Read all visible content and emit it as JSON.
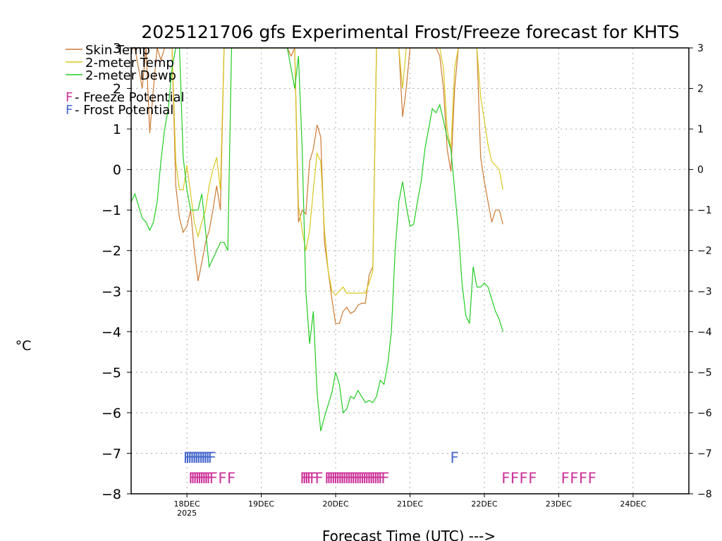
{
  "chart_data": {
    "type": "line",
    "title": "2025121706 gfs Experimental Frost/Freeze forecast for KHTS",
    "ylabel": "°C",
    "xlabel": "Forecast Time (UTC) --->",
    "ylim": [
      -8,
      3
    ],
    "xlim": [
      17.25,
      24.75
    ],
    "yticks": [
      -8,
      -7,
      -6,
      -5,
      -4,
      -3,
      -2,
      -1,
      0,
      1,
      2,
      3
    ],
    "xticks": [
      {
        "v": 18,
        "label": "18DEC",
        "sub": "2025"
      },
      {
        "v": 19,
        "label": "19DEC",
        "sub": ""
      },
      {
        "v": 20,
        "label": "20DEC",
        "sub": ""
      },
      {
        "v": 21,
        "label": "21DEC",
        "sub": ""
      },
      {
        "v": 22,
        "label": "22DEC",
        "sub": ""
      },
      {
        "v": 23,
        "label": "23DEC",
        "sub": ""
      },
      {
        "v": 24,
        "label": "24DEC",
        "sub": ""
      }
    ],
    "grid": true,
    "legend": {
      "placement": "top-left",
      "lines": [
        {
          "label": "Skin Temp",
          "color": "#cc7a33"
        },
        {
          "label": "2-meter Temp",
          "color": "#d8c81e"
        },
        {
          "label": "2-meter Dewp",
          "color": "#22cc22"
        }
      ],
      "markers": [
        {
          "glyph": "F",
          "label": " - Freeze Potential",
          "color": "#cc3399"
        },
        {
          "glyph": "F",
          "label": " - Frost Potential",
          "color": "#4466cc"
        }
      ]
    },
    "series": [
      {
        "name": "Skin Temp",
        "color": "#cc7a33",
        "x": [
          17.25,
          17.3,
          17.35,
          17.4,
          17.45,
          17.5,
          17.55,
          17.6,
          17.65,
          17.7,
          17.75,
          17.8,
          17.85,
          17.9,
          17.95,
          18.0,
          18.05,
          18.1,
          18.15,
          18.2,
          18.25,
          18.3,
          18.35,
          18.4,
          18.45,
          18.5,
          18.55,
          18.6,
          18.65,
          18.7,
          19.35,
          19.4,
          19.45,
          19.5,
          19.55,
          19.6,
          19.65,
          19.7,
          19.75,
          19.8,
          19.85,
          19.9,
          19.95,
          20.0,
          20.05,
          20.1,
          20.15,
          20.2,
          20.25,
          20.3,
          20.35,
          20.4,
          20.45,
          20.5,
          20.55,
          20.6,
          20.65,
          20.7,
          20.85,
          20.9,
          20.95,
          21.0,
          21.35,
          21.4,
          21.45,
          21.5,
          21.55,
          21.6,
          21.65,
          21.9,
          21.95,
          22.0,
          22.05,
          22.1,
          22.15,
          22.2,
          22.25
        ],
        "values": [
          3,
          3,
          2.5,
          2,
          3,
          0.9,
          2,
          3,
          2.7,
          3,
          3,
          3,
          -0.4,
          -1.2,
          -1.55,
          -1.4,
          -1.0,
          -2.0,
          -2.75,
          -2.3,
          -1.8,
          -1.5,
          -1.0,
          -0.4,
          -1.0,
          3,
          3,
          3,
          3,
          3,
          3,
          2.8,
          3,
          -1.3,
          -1.0,
          -1.1,
          0.2,
          0.5,
          1.1,
          0.8,
          -1.8,
          -2.5,
          -3.2,
          -3.8,
          -3.8,
          -3.5,
          -3.4,
          -3.55,
          -3.5,
          -3.35,
          -3.3,
          -3.3,
          -2.6,
          -2.4,
          3,
          3,
          3,
          3,
          3,
          1.3,
          2,
          3,
          3,
          2.8,
          2,
          0.5,
          -0.05,
          2,
          3,
          3,
          0.3,
          -0.3,
          -0.8,
          -1.3,
          -1.0,
          -1.0,
          -1.35
        ]
      },
      {
        "name": "2-meter Temp",
        "color": "#d8c81e",
        "x": [
          17.25,
          17.3,
          17.35,
          17.4,
          17.45,
          17.5,
          17.55,
          17.6,
          17.65,
          17.7,
          17.75,
          17.8,
          17.85,
          17.9,
          17.95,
          18.0,
          18.05,
          18.1,
          18.15,
          18.2,
          18.25,
          18.3,
          18.35,
          18.4,
          18.45,
          18.5,
          18.55,
          18.6,
          18.65,
          18.7,
          19.35,
          19.4,
          19.45,
          19.5,
          19.55,
          19.6,
          19.65,
          19.7,
          19.75,
          19.8,
          19.85,
          19.9,
          19.95,
          20.0,
          20.05,
          20.1,
          20.15,
          20.2,
          20.25,
          20.3,
          20.35,
          20.4,
          20.45,
          20.5,
          20.55,
          20.6,
          20.65,
          20.7,
          20.85,
          20.9,
          20.95,
          21.0,
          21.35,
          21.4,
          21.45,
          21.5,
          21.55,
          21.6,
          21.65,
          21.9,
          21.95,
          22.0,
          22.05,
          22.1,
          22.15,
          22.2,
          22.25
        ],
        "values": [
          3,
          3,
          3,
          3,
          3,
          3,
          3,
          3,
          3,
          3,
          3,
          3,
          0.2,
          -0.5,
          -0.5,
          0.1,
          -0.6,
          -1.3,
          -1.65,
          -1.3,
          -1.0,
          -0.4,
          0.0,
          0.3,
          -0.5,
          3,
          3,
          3,
          3,
          3,
          3,
          3,
          3,
          -0.9,
          -1.5,
          -2.0,
          -1.5,
          -0.5,
          0.4,
          0.2,
          -1.5,
          -2.5,
          -3.0,
          -3.1,
          -3.0,
          -2.9,
          -3.05,
          -3.05,
          -3.05,
          -3.05,
          -3.05,
          -3.05,
          -2.8,
          -2.5,
          3,
          3,
          3,
          3,
          3,
          2,
          3,
          3,
          3,
          3,
          2.5,
          1,
          0.5,
          2.5,
          3,
          3,
          1.8,
          1.2,
          0.6,
          0.2,
          0.1,
          0.0,
          -0.5
        ]
      },
      {
        "name": "2-meter Dewp",
        "color": "#22cc22",
        "x": [
          17.25,
          17.3,
          17.35,
          17.4,
          17.45,
          17.5,
          17.55,
          17.6,
          17.65,
          17.7,
          17.75,
          17.8,
          17.85,
          17.9,
          17.95,
          18.0,
          18.05,
          18.1,
          18.15,
          18.2,
          18.25,
          18.3,
          18.35,
          18.4,
          18.45,
          18.5,
          18.55,
          18.6,
          18.65,
          18.7,
          19.35,
          19.4,
          19.45,
          19.5,
          19.55,
          19.6,
          19.65,
          19.7,
          19.75,
          19.8,
          19.85,
          19.9,
          19.95,
          20.0,
          20.05,
          20.1,
          20.15,
          20.2,
          20.25,
          20.3,
          20.35,
          20.4,
          20.45,
          20.5,
          20.55,
          20.6,
          20.65,
          20.7,
          20.75,
          20.8,
          20.85,
          20.9,
          20.95,
          21.0,
          21.05,
          21.1,
          21.15,
          21.2,
          21.25,
          21.3,
          21.35,
          21.4,
          21.45,
          21.5,
          21.55,
          21.6,
          21.65,
          21.7,
          21.75,
          21.8,
          21.85,
          21.9,
          21.95,
          22.0,
          22.05,
          22.1,
          22.15,
          22.2,
          22.25
        ],
        "values": [
          -0.8,
          -0.6,
          -0.9,
          -1.2,
          -1.3,
          -1.5,
          -1.3,
          -0.8,
          0.2,
          1.0,
          1.5,
          2.5,
          3,
          3,
          0.3,
          -0.5,
          -1.0,
          -1.0,
          -1.0,
          -0.6,
          -1.5,
          -2.4,
          -2.2,
          -2.0,
          -1.8,
          -1.8,
          -2.0,
          3,
          3,
          3,
          3,
          2.5,
          2.0,
          2.8,
          0.5,
          -3.0,
          -4.3,
          -3.5,
          -5.5,
          -6.45,
          -6.1,
          -5.8,
          -5.5,
          -5.0,
          -5.3,
          -6.0,
          -5.9,
          -5.6,
          -5.65,
          -5.45,
          -5.6,
          -5.75,
          -5.7,
          -5.75,
          -5.6,
          -5.2,
          -5.3,
          -4.8,
          -4.0,
          -2.0,
          -0.8,
          -0.3,
          -0.9,
          -1.4,
          -1.35,
          -0.8,
          -0.3,
          0.5,
          1.0,
          1.5,
          1.4,
          1.6,
          1.2,
          0.8,
          0.5,
          -0.5,
          -1.5,
          -2.8,
          -3.6,
          -3.8,
          -2.4,
          -2.9,
          -2.9,
          -2.8,
          -2.9,
          -3.2,
          -3.5,
          -3.7,
          -4.0
        ]
      }
    ],
    "markers": {
      "frost": {
        "color": "#4466cc",
        "y": -7.1,
        "x": [
          17.95,
          17.98,
          18.01,
          18.04,
          18.07,
          18.1,
          18.13,
          18.16,
          18.19,
          18.22,
          18.25,
          18.28,
          21.54
        ]
      },
      "freeze": {
        "color": "#cc3399",
        "y": -7.6,
        "x": [
          18.02,
          18.05,
          18.08,
          18.11,
          18.14,
          18.17,
          18.2,
          18.23,
          18.26,
          18.3,
          18.42,
          18.54,
          19.52,
          19.55,
          19.58,
          19.61,
          19.65,
          19.72,
          19.85,
          19.88,
          19.91,
          19.94,
          19.97,
          20.0,
          20.03,
          20.06,
          20.09,
          20.12,
          20.15,
          20.18,
          20.21,
          20.24,
          20.27,
          20.3,
          20.33,
          20.36,
          20.39,
          20.42,
          20.45,
          20.48,
          20.51,
          20.54,
          20.57,
          20.61,
          22.23,
          22.35,
          22.47,
          22.59,
          23.03,
          23.15,
          23.27,
          23.39
        ]
      }
    }
  }
}
